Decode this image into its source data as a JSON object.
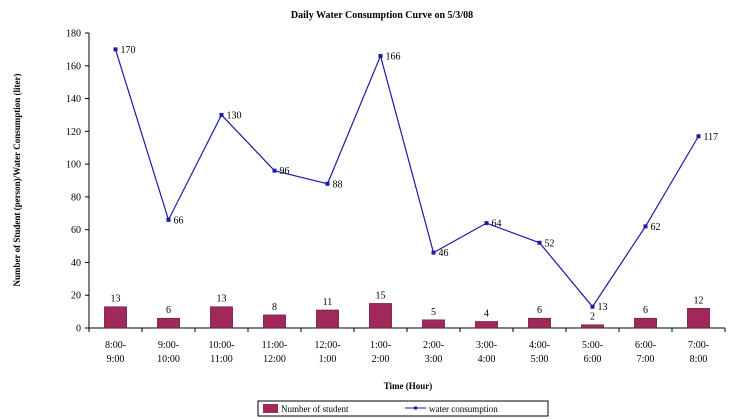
{
  "chart_data": {
    "type": "bar",
    "title": "Daily Water Consumption Curve on 5/3/08",
    "xlabel": "Time (Hour)",
    "ylabel": "Number of Student (person)/Water Consumption (liter)",
    "ylim": [
      0,
      180
    ],
    "yticks": [
      0,
      20,
      40,
      60,
      80,
      100,
      120,
      140,
      160,
      180
    ],
    "grid": false,
    "legend_position": "bottom",
    "categories": [
      [
        "8:00-",
        "9:00"
      ],
      [
        "9:00-",
        "10:00"
      ],
      [
        "10:00-",
        "11:00"
      ],
      [
        "11:00-",
        "12:00"
      ],
      [
        "12:00-",
        "1:00"
      ],
      [
        "1:00-",
        "2:00"
      ],
      [
        "2:00-",
        "3:00"
      ],
      [
        "3:00-",
        "4:00"
      ],
      [
        "4:00-",
        "5:00"
      ],
      [
        "5:00-",
        "6:00"
      ],
      [
        "6:00-",
        "7:00"
      ],
      [
        "7:00-",
        "8:00"
      ]
    ],
    "series": [
      {
        "name": "Number of student",
        "type": "bar",
        "color": "#a0285a",
        "values": [
          13,
          6,
          13,
          8,
          11,
          15,
          5,
          4,
          6,
          2,
          6,
          12
        ]
      },
      {
        "name": "water consumption",
        "type": "line",
        "color": "#1a1aa8",
        "values": [
          170,
          66,
          130,
          96,
          88,
          166,
          46,
          64,
          52,
          13,
          62,
          117
        ]
      }
    ]
  }
}
